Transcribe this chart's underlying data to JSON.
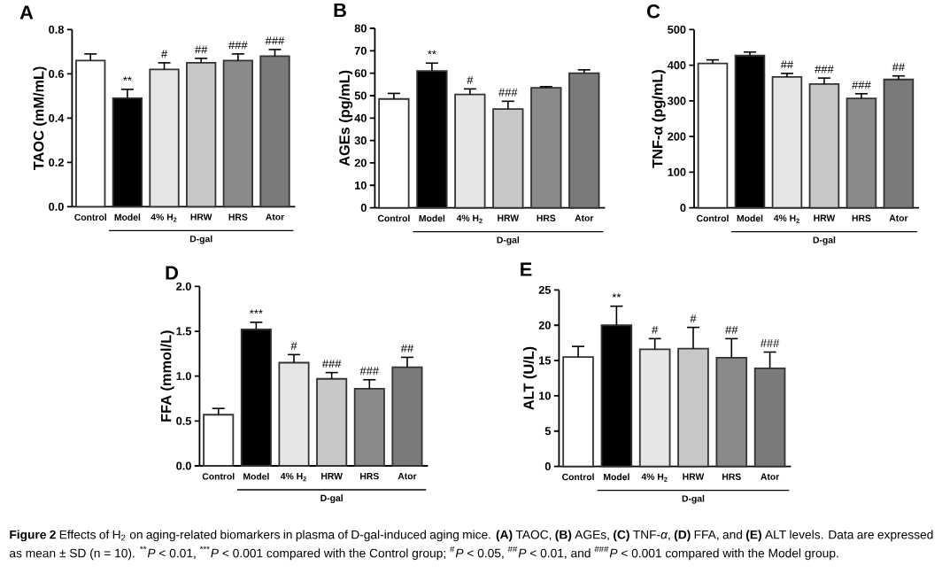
{
  "chart_data": [
    {
      "type": "bar",
      "title": "A",
      "ylabel": "TAOC (mM/mL)",
      "categories": [
        "Control",
        "Model",
        "4% H$_{2}$",
        "HRW",
        "HRS",
        "Ator"
      ],
      "values": [
        0.66,
        0.49,
        0.62,
        0.65,
        0.66,
        0.68
      ],
      "colors": [
        "#ffffff",
        "#000000",
        "#e6e6e6",
        "#c8c8c8",
        "#8a8a8a",
        "#7a7a7a"
      ],
      "errors": [
        [
          0.66,
          0.69
        ],
        [
          0.49,
          0.53
        ],
        [
          0.62,
          0.65
        ],
        [
          0.65,
          0.67
        ],
        [
          0.66,
          0.69
        ],
        [
          0.68,
          0.71
        ]
      ],
      "ylim": [
        0,
        0.8
      ],
      "yticks": [
        {
          "value": 0,
          "label": "0.0"
        },
        0.2,
        0.4,
        0.6,
        0.8
      ],
      "annotations": [
        {
          "text": "**",
          "x": "Model",
          "y": 0.53
        },
        {
          "text": "#",
          "x": "4% H$_{2}$",
          "y": 0.65
        },
        {
          "text": "##",
          "x": "HRW",
          "y": 0.67
        },
        {
          "text": "###",
          "x": "HRS",
          "y": 0.69
        },
        {
          "text": "###",
          "x": "Ator",
          "y": 0.71
        },
        "D-gal"
      ]
    },
    {
      "type": "bar",
      "title": "B",
      "ylabel": "AGEs (pg/mL)",
      "categories": [
        "Control",
        "Model",
        "4% H$_{2}$",
        "HRW",
        "HRS",
        "Ator"
      ],
      "values": [
        48.5,
        61,
        50.5,
        44,
        53.5,
        60
      ],
      "colors": [
        "#ffffff",
        "#000000",
        "#e6e6e6",
        "#c8c8c8",
        "#8a8a8a",
        "#7a7a7a"
      ],
      "errors": [
        [
          48.5,
          51
        ],
        [
          61,
          64.5
        ],
        [
          50.5,
          53
        ],
        [
          44,
          47.5
        ],
        [
          53.5,
          54
        ],
        [
          60,
          61.5
        ]
      ],
      "ylim": [
        0,
        80
      ],
      "yticks": [
        0,
        10,
        20,
        30,
        40,
        50,
        60,
        70,
        80
      ],
      "annotations": [
        {
          "text": "**",
          "x": "Model",
          "y": 64.5
        },
        {
          "text": "#",
          "x": "4% H$_{2}$",
          "y": 53
        },
        {
          "text": "###",
          "x": "HRW",
          "y": 47.5
        },
        "D-gal"
      ]
    },
    {
      "type": "bar",
      "title": "C",
      "ylabel": "TNF-α (pg/mL)",
      "categories": [
        "Control",
        "Model",
        "4% H$_{2}$",
        "HRW",
        "HRS",
        "Ator"
      ],
      "values": [
        405,
        427,
        367,
        347,
        307,
        360
      ],
      "colors": [
        "#ffffff",
        "#000000",
        "#e6e6e6",
        "#c8c8c8",
        "#8a8a8a",
        "#7a7a7a"
      ],
      "errors": [
        [
          405,
          415
        ],
        [
          427,
          437
        ],
        [
          367,
          377
        ],
        [
          347,
          364
        ],
        [
          307,
          320
        ],
        [
          360,
          370
        ]
      ],
      "ylim": [
        0,
        500
      ],
      "yticks": [
        0,
        100,
        200,
        300,
        400,
        500
      ],
      "annotations": [
        {
          "text": "##",
          "x": "4% H$_{2}$",
          "y": 377
        },
        {
          "text": "###",
          "x": "HRW",
          "y": 364
        },
        {
          "text": "###",
          "x": "HRS",
          "y": 320
        },
        {
          "text": "##",
          "x": "Ator",
          "y": 370
        },
        "D-gal"
      ]
    },
    {
      "type": "bar",
      "title": "D",
      "ylabel": "FFA (mmol/L)",
      "categories": [
        "Control",
        "Model",
        "4% H$_{2}$",
        "HRW",
        "HRS",
        "Ator"
      ],
      "values": [
        0.57,
        1.52,
        1.15,
        0.97,
        0.86,
        1.1
      ],
      "colors": [
        "#ffffff",
        "#000000",
        "#e6e6e6",
        "#c8c8c8",
        "#8a8a8a",
        "#7a7a7a"
      ],
      "errors": [
        [
          0.57,
          0.64
        ],
        [
          1.52,
          1.6
        ],
        [
          1.15,
          1.24
        ],
        [
          0.97,
          1.04
        ],
        [
          0.86,
          0.96
        ],
        [
          1.1,
          1.21
        ]
      ],
      "ylim": [
        0,
        2
      ],
      "yticks": [
        {
          "value": 0,
          "label": "0.0"
        },
        0.5,
        {
          "value": 1,
          "label": "1.0"
        },
        1.5,
        {
          "value": 2,
          "label": "2.0"
        }
      ],
      "annotations": [
        {
          "text": "***",
          "x": "Model",
          "y": 1.6
        },
        {
          "text": "#",
          "x": "4% H$_{2}$",
          "y": 1.24
        },
        {
          "text": "###",
          "x": "HRW",
          "y": 1.04
        },
        {
          "text": "###",
          "x": "HRS",
          "y": 0.96
        },
        {
          "text": "##",
          "x": "Ator",
          "y": 1.21
        },
        "D-gal"
      ]
    },
    {
      "type": "bar",
      "title": "E",
      "ylabel": "ALT (U/L)",
      "categories": [
        "Control",
        "Model",
        "4% H$_{2}$",
        "HRW",
        "HRS",
        "Ator"
      ],
      "values": [
        15.5,
        20,
        16.6,
        16.7,
        15.4,
        13.9
      ],
      "colors": [
        "#ffffff",
        "#000000",
        "#e6e6e6",
        "#c8c8c8",
        "#8a8a8a",
        "#7a7a7a"
      ],
      "errors": [
        [
          15.5,
          17
        ],
        [
          20,
          22.7
        ],
        [
          16.6,
          18.1
        ],
        [
          16.7,
          19.7
        ],
        [
          15.4,
          18.1
        ],
        [
          13.9,
          16.2
        ]
      ],
      "ylim": [
        0,
        25
      ],
      "yticks": [
        0,
        5,
        10,
        15,
        20,
        25
      ],
      "annotations": [
        {
          "text": "**",
          "x": "Model",
          "y": 22.7
        },
        {
          "text": "#",
          "x": "4% H$_{2}$",
          "y": 18.1
        },
        {
          "text": "#",
          "x": "HRW",
          "y": 19.7
        },
        {
          "text": "##",
          "x": "HRS",
          "y": 18.1
        },
        {
          "text": "###",
          "x": "Ator",
          "y": 16.2
        },
        "D-gal"
      ]
    },
    {
      "type": "other",
      "annotations": [
        "**Figure 2** Effects of H$_{2}$ on aging-related biomarkers in plasma of D-gal-induced aging mice. **(A)** TAOC, **(B)** AGEs, **(C)** TNF-*α*, **(D)** FFA, and **(E)** ALT levels. Data are expressed as mean ± SD (n = 10). $^{**}$*P* < 0.01, $^{***}$*P* < 0.001 compared with the Control group; $^{#}$*P* < 0.05, $^{##}$*P* < 0.01, and $^{###}$*P* < 0.001 compared with the Model group."
      ]
    }
  ]
}
